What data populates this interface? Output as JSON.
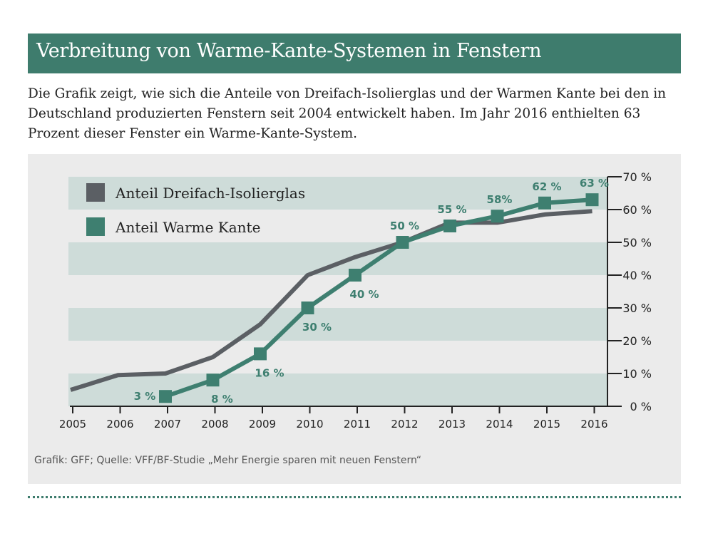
{
  "title": "Verbreitung von Warme-Kante-Systemen in Fenstern",
  "intro": "Die Grafik zeigt, wie sich die Anteile von Dreifach-Isolierglas und der Warmen Kante bei den in Deutschland produzierten Fenstern seit 2004 entwickelt haben. Im Jahr 2016 enthielten 63 Prozent dieser Fenster ein Warme-Kante-System.",
  "source": "Grafik: GFF; Quelle: VFF/BF-Studie „Mehr Energie sparen mit neuen Fenstern“",
  "chart_data": {
    "type": "line",
    "x": [
      2005,
      2006,
      2007,
      2008,
      2009,
      2010,
      2011,
      2012,
      2013,
      2014,
      2015,
      2016
    ],
    "ylim": [
      0,
      70
    ],
    "y_ticks": [
      "0 %",
      "10 %",
      "20 %",
      "30 %",
      "40 %",
      "50 %",
      "60 %",
      "70 %"
    ],
    "y_axis_position": "right",
    "grid": "alternating horizontal bands",
    "legend_position": "top-left",
    "series": [
      {
        "name": "Anteil Dreifach-Isolierglas",
        "color": "#5b5f64",
        "values": [
          5,
          9.5,
          10,
          15,
          25,
          40,
          45.5,
          50,
          56,
          56,
          58.5,
          59.5
        ],
        "labels": null
      },
      {
        "name": "Anteil Warme Kante",
        "color": "#3e7f70",
        "values": [
          null,
          null,
          3,
          8,
          16,
          30,
          40,
          50,
          55,
          58,
          62,
          63
        ],
        "labels": [
          null,
          null,
          "3 %",
          "8 %",
          "16 %",
          "30 %",
          "40 %",
          "50 %",
          "55 %",
          "58%",
          "62 %",
          "63 %"
        ]
      }
    ]
  }
}
